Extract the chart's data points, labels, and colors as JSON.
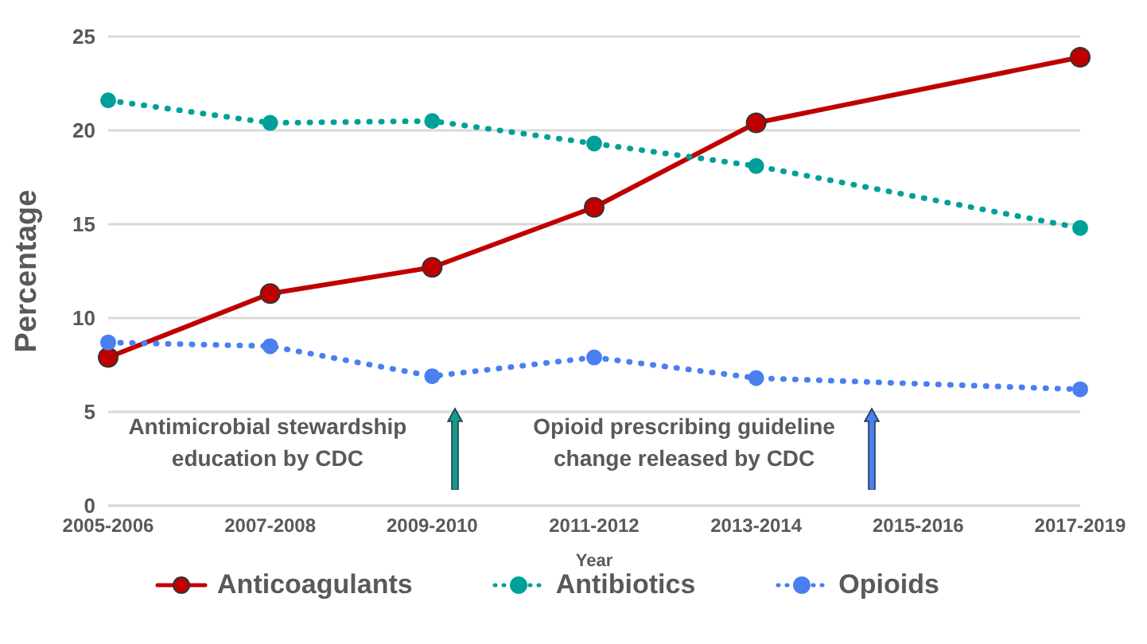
{
  "chart_data": {
    "type": "line",
    "xlabel": "Year",
    "ylabel": "Percentage",
    "categories": [
      "2005-2006",
      "2007-2008",
      "2009-2010",
      "2011-2012",
      "2013-2014",
      "2015-2016",
      "2017-2019"
    ],
    "series": [
      {
        "name": "Anticoagulants",
        "color": "#c00000",
        "line_style": "solid",
        "values": [
          7.9,
          11.3,
          12.7,
          15.9,
          20.4,
          null,
          23.9
        ]
      },
      {
        "name": "Antibiotics",
        "color": "#00a09a",
        "line_style": "dotted",
        "values": [
          21.6,
          20.4,
          20.5,
          19.3,
          18.1,
          null,
          14.8
        ]
      },
      {
        "name": "Opioids",
        "color": "#4a7ff0",
        "line_style": "dotted",
        "values": [
          8.7,
          8.5,
          6.9,
          7.9,
          6.8,
          null,
          6.2
        ]
      }
    ],
    "ylim": [
      0,
      25
    ],
    "yticks": [
      0,
      5,
      10,
      15,
      20,
      25
    ],
    "grid": "y",
    "legend": "bottom",
    "marker": "circle",
    "ref_lines": [
      {
        "axis": "x",
        "value": "2009-2010",
        "label": "Antimicrobial stewardship education by CDC",
        "color": "#149a86"
      },
      {
        "axis": "x",
        "value": "2015-2016",
        "label": "Opioid prescribing guideline change released by CDC",
        "color": "#4a7ff0"
      }
    ]
  }
}
